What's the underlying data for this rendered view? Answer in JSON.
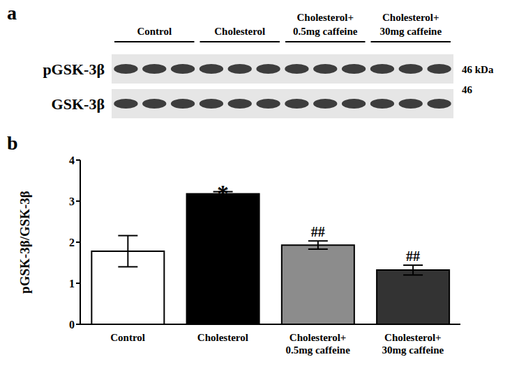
{
  "blot": {
    "panel_label": "a",
    "groups": [
      "Control",
      "Cholesterol",
      "Cholesterol+\n0.5mg caffeine",
      "Cholesterol+\n30mg caffeine"
    ],
    "rows": [
      {
        "label": "pGSK-3β",
        "size": "46 kDa"
      },
      {
        "label": "GSK-3β",
        "size": "46"
      }
    ]
  },
  "chart_data": {
    "type": "bar",
    "panel_label": "b",
    "y_label": "pGSK-3β/GSK-3β",
    "categories": [
      "Control",
      "Cholesterol",
      "Cholesterol+\n0.5mg caffeine",
      "Cholesterol+\n30mg caffeine"
    ],
    "values": [
      1.78,
      3.18,
      1.93,
      1.32
    ],
    "errors": [
      0.38,
      0.05,
      0.1,
      0.12
    ],
    "annotations": [
      null,
      "*",
      "##",
      "##"
    ],
    "colors": [
      "#ffffff",
      "#000000",
      "#8c8c8c",
      "#333333"
    ],
    "ylim": [
      0,
      4
    ],
    "yticks": [
      0,
      1,
      2,
      3,
      4
    ]
  }
}
